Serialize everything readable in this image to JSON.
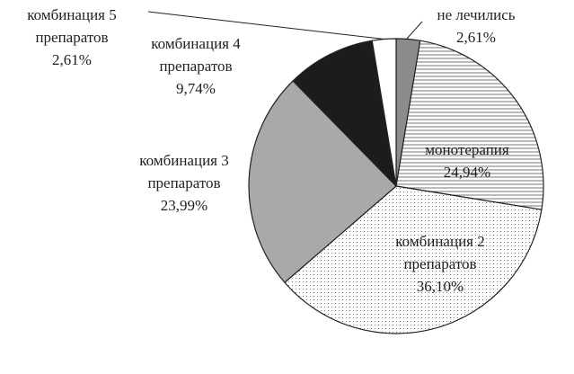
{
  "chart_data": {
    "type": "pie",
    "categories": [
      "не лечились",
      "монотерапия",
      "комбинация 2 препаратов",
      "комбинация 3 препаратов",
      "комбинация 4 препаратов",
      "комбинация 5 препаратов"
    ],
    "values": [
      2.61,
      24.94,
      36.1,
      23.99,
      9.74,
      2.61
    ],
    "value_labels": [
      "2,61%",
      "24,94%",
      "36,10%",
      "23,99%",
      "9,74%",
      "2,61%"
    ],
    "colors": [
      "#8c8c8c",
      "url(#stripes)",
      "url(#dots)",
      "#a9a9a9",
      "#1c1c1c",
      "#ffffff"
    ]
  }
}
